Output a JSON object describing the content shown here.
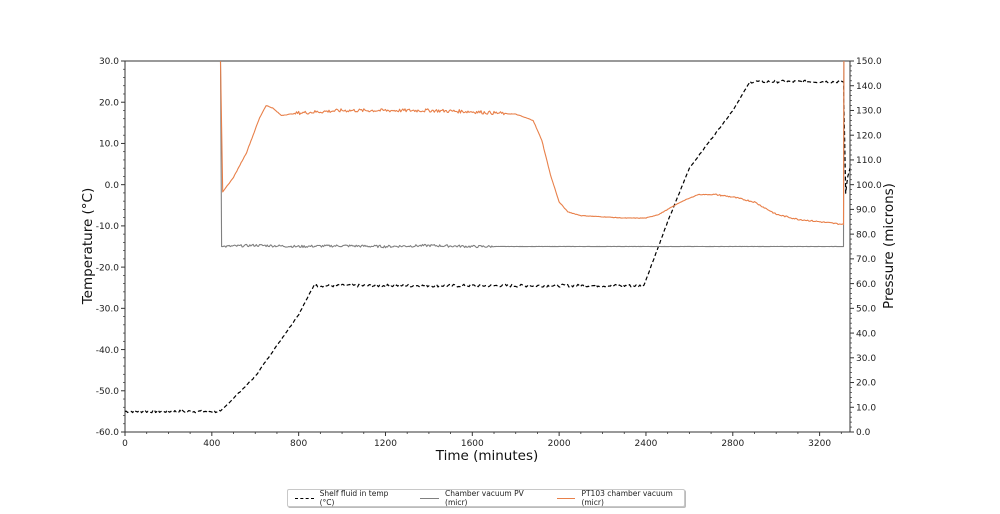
{
  "chart_data": {
    "type": "line",
    "title": "",
    "xlabel": "Time (minutes)",
    "ylabel": "Temperature (°C)",
    "ylabel_right": "Pressure (microns)",
    "xlim": [
      0,
      3340
    ],
    "ylim": [
      -60,
      30
    ],
    "ylim_right": [
      0,
      150
    ],
    "x_ticks": [
      0,
      400,
      800,
      1200,
      1600,
      2000,
      2400,
      2800,
      3200
    ],
    "x_tick_labels": [
      "0",
      "400",
      "800",
      "1200",
      "1600",
      "2000",
      "2400",
      "2800",
      "3200"
    ],
    "y_ticks": [
      30,
      20,
      10,
      0,
      -10,
      -20,
      -30,
      -40,
      -50,
      -60
    ],
    "y_tick_labels": [
      "30.0",
      "20.0",
      "10.0",
      "0.0",
      "-10.0",
      "-20.0",
      "-30.0",
      "-40.0",
      "-50.0",
      "-60.0"
    ],
    "y_right_ticks": [
      150,
      140,
      130,
      120,
      110,
      100,
      90,
      80,
      70,
      60,
      50,
      40,
      30,
      20,
      10,
      0
    ],
    "y_right_tick_labels": [
      "150.0",
      "140.0",
      "130.0",
      "120.0",
      "110.0",
      "100.0",
      "90.0",
      "80.0",
      "70.0",
      "60.0",
      "50.0",
      "40.0",
      "30.0",
      "20.0",
      "10.0",
      "0.0"
    ],
    "grid": false,
    "legend_position": "bottom-center",
    "series": [
      {
        "name": "Shelf fluid in temp (°C)",
        "axis": "left",
        "color": "#000000",
        "style": "dashed",
        "x": [
          0,
          100,
          200,
          300,
          400,
          440,
          600,
          800,
          870,
          1000,
          1400,
          1800,
          2200,
          2390,
          2500,
          2600,
          2700,
          2800,
          2880,
          3000,
          3200,
          3310,
          3320,
          3330,
          3340
        ],
        "y": [
          -55,
          -55,
          -55,
          -55,
          -55,
          -55,
          -46.5,
          -31.5,
          -24.5,
          -24.5,
          -24.5,
          -24.5,
          -24.5,
          -24.5,
          -9,
          4,
          11,
          18,
          25,
          25,
          25,
          25,
          -2,
          2,
          4
        ]
      },
      {
        "name": "Chamber vacuum PV (micr)",
        "axis": "right",
        "color": "#808080",
        "style": "solid",
        "x": [
          440,
          445,
          460,
          600,
          800,
          1000,
          1200,
          1400,
          1600,
          2000,
          2400,
          2800,
          3200,
          3310,
          3312
        ],
        "y": [
          150,
          75,
          75,
          75.5,
          75,
          75.3,
          75,
          75.4,
          75,
          75,
          75,
          75,
          75,
          75,
          150
        ]
      },
      {
        "name": "PT103 chamber vacuum (micr)",
        "axis": "right",
        "color": "#e8804a",
        "style": "solid",
        "x": [
          440,
          450,
          500,
          560,
          620,
          650,
          680,
          720,
          800,
          1000,
          1200,
          1400,
          1600,
          1800,
          1880,
          1920,
          1960,
          2000,
          2040,
          2100,
          2200,
          2300,
          2400,
          2460,
          2560,
          2640,
          2720,
          2800,
          2900,
          3000,
          3100,
          3200,
          3300,
          3310,
          3312
        ],
        "y": [
          150,
          97,
          103,
          113,
          127,
          132,
          131,
          128,
          129,
          130,
          130,
          130,
          129.5,
          128.5,
          126,
          118,
          104,
          93,
          89,
          87.5,
          87,
          86.5,
          86.5,
          88,
          93,
          96,
          96,
          95,
          93,
          88,
          86,
          85,
          84,
          84,
          150
        ]
      }
    ]
  },
  "axes": {
    "xlabel": "Time (minutes)",
    "ylabel_left": "Temperature (°C)",
    "ylabel_right": "Pressure (microns)"
  },
  "legend": {
    "items": [
      {
        "label": "Shelf fluid in temp (°C)",
        "color": "#000000",
        "style": "dashed"
      },
      {
        "label": "Chamber vacuum PV (micr)",
        "color": "#808080",
        "style": "solid"
      },
      {
        "label": "PT103 chamber vacuum (micr)",
        "color": "#e8804a",
        "style": "solid"
      }
    ]
  }
}
